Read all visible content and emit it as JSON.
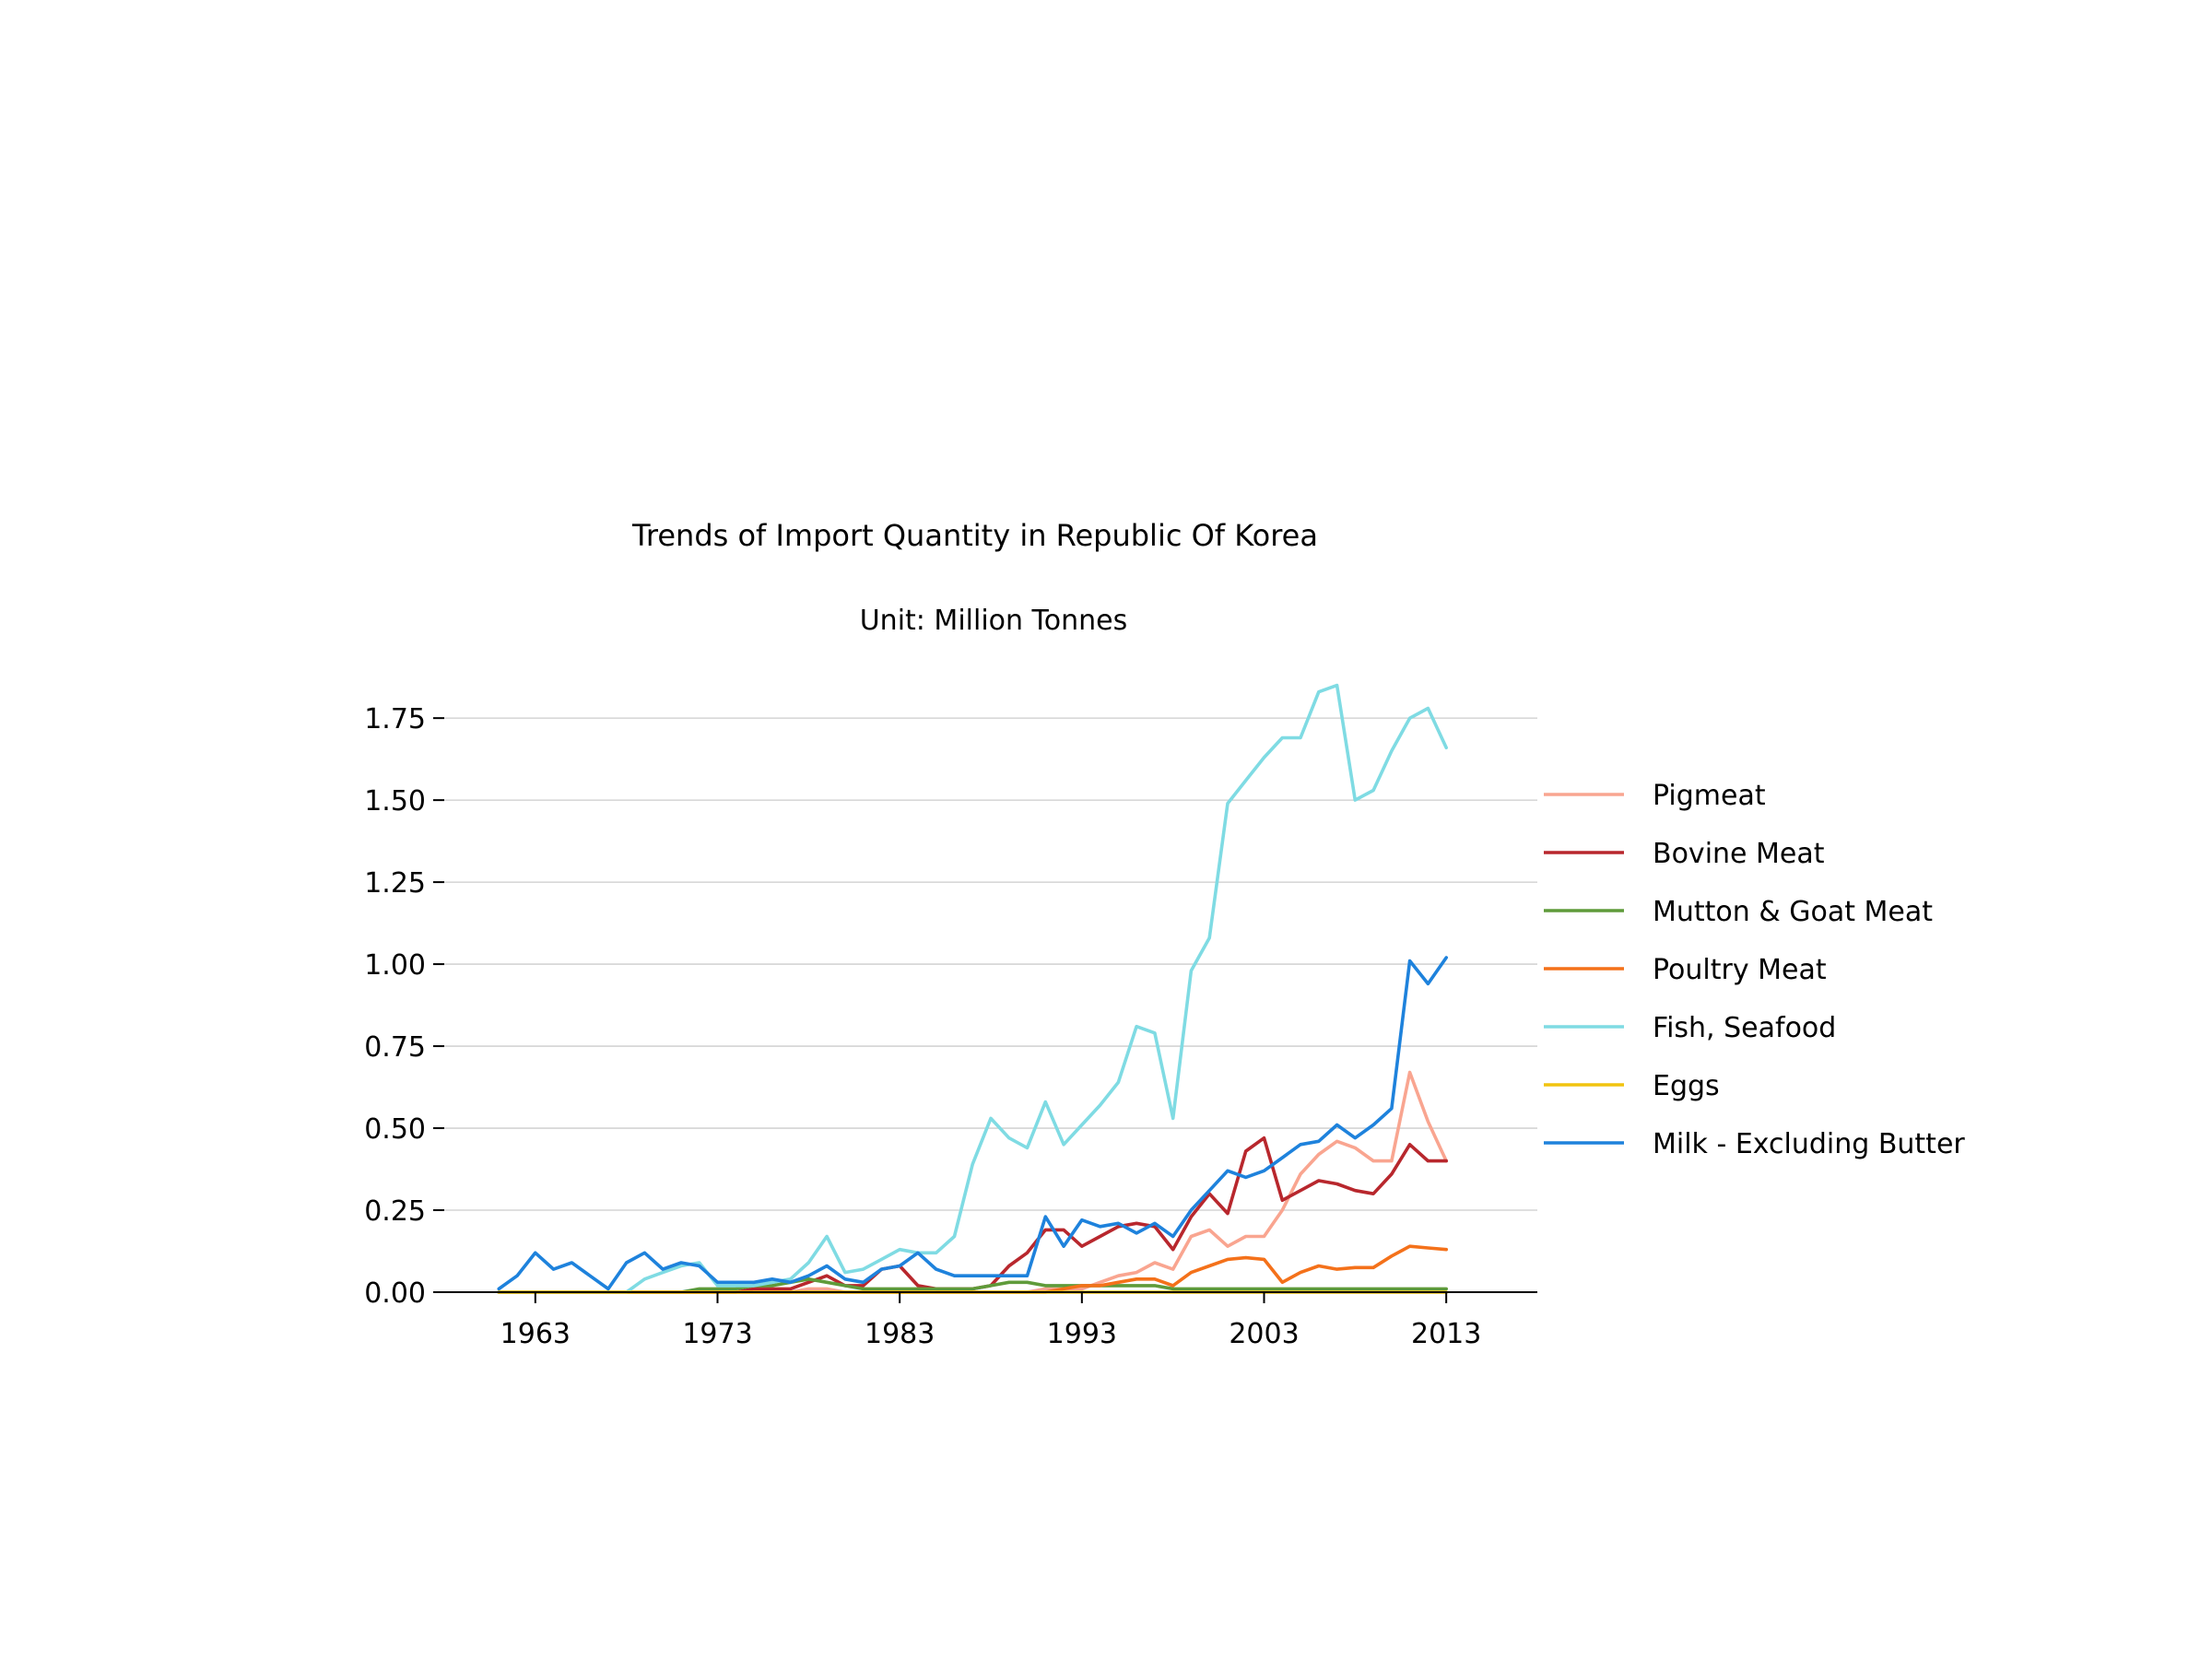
{
  "chart_data": {
    "type": "line",
    "title": "Trends of Import Quantity in Republic Of Korea",
    "subtitle": "Unit: Million Tonnes",
    "xlabel": "",
    "ylabel": "",
    "xlim": [
      1958,
      2018
    ],
    "ylim": [
      0,
      1.86
    ],
    "x_ticks": [
      1963,
      1973,
      1983,
      1993,
      2003,
      2013
    ],
    "x_tick_labels": [
      "1963",
      "1973",
      "1983",
      "1993",
      "2003",
      "2013"
    ],
    "y_ticks": [
      0,
      0.25,
      0.5,
      0.75,
      1.0,
      1.25,
      1.5,
      1.75
    ],
    "y_tick_labels": [
      "0.00",
      "0.25",
      "0.50",
      "0.75",
      "1.00",
      "1.25",
      "1.50",
      "1.75"
    ],
    "grid": "horizontal",
    "legend_position": "right",
    "x": [
      1961,
      1962,
      1963,
      1964,
      1965,
      1966,
      1967,
      1968,
      1969,
      1970,
      1971,
      1972,
      1973,
      1974,
      1975,
      1976,
      1977,
      1978,
      1979,
      1980,
      1981,
      1982,
      1983,
      1984,
      1985,
      1986,
      1987,
      1988,
      1989,
      1990,
      1991,
      1992,
      1993,
      1994,
      1995,
      1996,
      1997,
      1998,
      1999,
      2000,
      2001,
      2002,
      2003,
      2004,
      2005,
      2006,
      2007,
      2008,
      2009,
      2010,
      2011,
      2012,
      2013
    ],
    "series": [
      {
        "name": "Pigmeat",
        "color": "#f9a590",
        "values": [
          0,
          0,
          0,
          0,
          0,
          0,
          0,
          0,
          0,
          0,
          0,
          0,
          0,
          0,
          0,
          0,
          0,
          0.01,
          0.01,
          0,
          0,
          0,
          0,
          0,
          0,
          0,
          0,
          0,
          0,
          0,
          0.01,
          0.01,
          0.01,
          0.03,
          0.05,
          0.06,
          0.09,
          0.07,
          0.17,
          0.19,
          0.14,
          0.17,
          0.17,
          0.25,
          0.36,
          0.42,
          0.46,
          0.44,
          0.4,
          0.4,
          0.67,
          0.52,
          0.4
        ]
      },
      {
        "name": "Bovine Meat",
        "color": "#b8272d",
        "values": [
          0,
          0,
          0,
          0,
          0,
          0,
          0,
          0,
          0,
          0,
          0,
          0,
          0,
          0,
          0.01,
          0.01,
          0.01,
          0.03,
          0.05,
          0.02,
          0.02,
          0.07,
          0.08,
          0.02,
          0.01,
          0.01,
          0.01,
          0.02,
          0.08,
          0.12,
          0.19,
          0.19,
          0.14,
          0.17,
          0.2,
          0.21,
          0.2,
          0.13,
          0.23,
          0.3,
          0.24,
          0.43,
          0.47,
          0.28,
          0.31,
          0.34,
          0.33,
          0.31,
          0.3,
          0.36,
          0.45,
          0.4,
          0.4
        ]
      },
      {
        "name": "Mutton & Goat Meat",
        "color": "#5f9b3a",
        "values": [
          0,
          0,
          0,
          0,
          0,
          0,
          0,
          0,
          0,
          0,
          0,
          0.01,
          0.01,
          0.01,
          0.02,
          0.02,
          0.03,
          0.04,
          0.03,
          0.02,
          0.01,
          0.01,
          0.01,
          0.01,
          0.01,
          0.01,
          0.01,
          0.02,
          0.03,
          0.03,
          0.02,
          0.02,
          0.02,
          0.02,
          0.02,
          0.02,
          0.02,
          0.01,
          0.01,
          0.01,
          0.01,
          0.01,
          0.01,
          0.01,
          0.01,
          0.01,
          0.01,
          0.01,
          0.01,
          0.01,
          0.01,
          0.01,
          0.01
        ]
      },
      {
        "name": "Poultry Meat",
        "color": "#f4711a",
        "values": [
          0,
          0,
          0,
          0,
          0,
          0,
          0,
          0,
          0,
          0,
          0,
          0,
          0,
          0,
          0,
          0,
          0,
          0,
          0,
          0,
          0,
          0,
          0,
          0,
          0,
          0,
          0,
          0,
          0,
          0,
          0,
          0.01,
          0.02,
          0.02,
          0.03,
          0.04,
          0.04,
          0.02,
          0.06,
          0.08,
          0.1,
          0.105,
          0.1,
          0.03,
          0.06,
          0.08,
          0.07,
          0.075,
          0.075,
          0.11,
          0.14,
          0.135,
          0.13
        ]
      },
      {
        "name": "Fish, Seafood",
        "color": "#7fdbe3",
        "values": [
          0,
          0,
          0,
          0,
          0,
          0,
          0,
          0,
          0.04,
          0.06,
          0.08,
          0.09,
          0.02,
          0.02,
          0.02,
          0.03,
          0.04,
          0.09,
          0.17,
          0.06,
          0.07,
          0.1,
          0.13,
          0.12,
          0.12,
          0.17,
          0.39,
          0.53,
          0.47,
          0.44,
          0.58,
          0.45,
          0.51,
          0.57,
          0.64,
          0.81,
          0.79,
          0.53,
          0.98,
          1.08,
          1.49,
          1.56,
          1.63,
          1.69,
          1.69,
          1.83,
          1.85,
          1.5,
          1.53,
          1.65,
          1.75,
          1.78,
          1.66
        ]
      },
      {
        "name": "Eggs",
        "color": "#f1c40f",
        "values": [
          0,
          0,
          0,
          0,
          0,
          0,
          0,
          0,
          0,
          0,
          0,
          0,
          0,
          0,
          0,
          0,
          0,
          0,
          0,
          0,
          0,
          0,
          0,
          0,
          0,
          0,
          0,
          0,
          0,
          0,
          0,
          0,
          0,
          0,
          0,
          0,
          0,
          0,
          0,
          0,
          0,
          0,
          0,
          0,
          0,
          0,
          0,
          0,
          0,
          0,
          0,
          0,
          0
        ]
      },
      {
        "name": "Milk - Excluding Butter",
        "color": "#1e82dc",
        "values": [
          0.01,
          0.05,
          0.12,
          0.07,
          0.09,
          0.05,
          0.01,
          0.09,
          0.12,
          0.07,
          0.09,
          0.08,
          0.03,
          0.03,
          0.03,
          0.04,
          0.03,
          0.05,
          0.08,
          0.04,
          0.03,
          0.07,
          0.08,
          0.12,
          0.07,
          0.05,
          0.05,
          0.05,
          0.05,
          0.05,
          0.23,
          0.14,
          0.22,
          0.2,
          0.21,
          0.18,
          0.21,
          0.17,
          0.25,
          0.31,
          0.37,
          0.35,
          0.37,
          0.41,
          0.45,
          0.46,
          0.51,
          0.47,
          0.51,
          0.56,
          1.01,
          0.94,
          1.02
        ]
      }
    ]
  }
}
